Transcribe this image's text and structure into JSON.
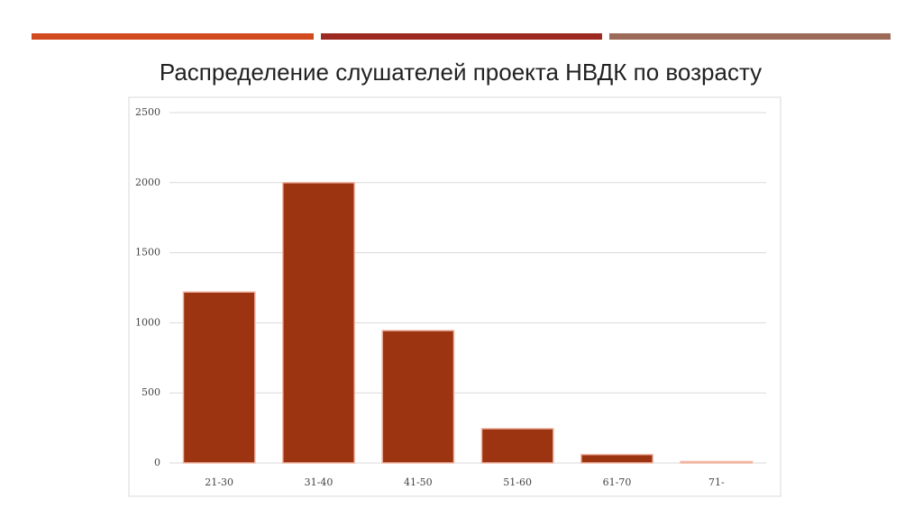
{
  "chart_data": {
    "type": "bar",
    "title": "Распределение слушателей проекта НВДК по возрасту",
    "categories": [
      "21-30",
      "31-40",
      "41-50",
      "51-60",
      "61-70",
      "71-"
    ],
    "values": [
      1220,
      2000,
      945,
      245,
      60,
      10
    ],
    "color": "#9c3412",
    "ylim": [
      0,
      2500
    ],
    "yticks": [
      0,
      500,
      1000,
      1500,
      2000,
      2500
    ],
    "grid": true
  }
}
